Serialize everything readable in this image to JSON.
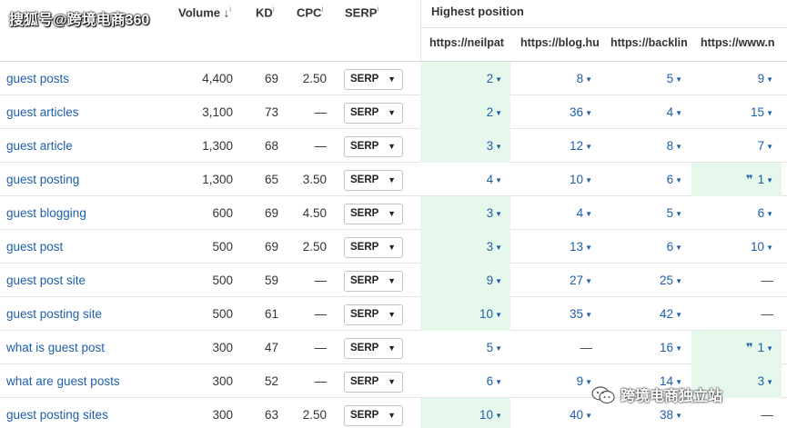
{
  "header": {
    "volume_label": "Volume",
    "volume_sort": "↓",
    "info_mark": "i",
    "kd_label": "KD",
    "cpc_label": "CPC",
    "serp_label": "SERP",
    "highest_position_label": "Highest position",
    "urls": [
      "https://neilpat",
      "https://blog.hu",
      "https://backlin",
      "https://www.n"
    ]
  },
  "serp_button_label": "SERP",
  "serp_caret": "▼",
  "position_caret": "▼",
  "featured_snippet_icon": "❞",
  "dash": "—",
  "highlight_color": "#e6f7ec",
  "link_color": "#1f5fa8",
  "rows": [
    {
      "keyword": "guest posts",
      "volume": "4,400",
      "kd": "69",
      "cpc": "2.50",
      "positions": [
        {
          "v": "2",
          "hl": true
        },
        {
          "v": "8"
        },
        {
          "v": "5"
        },
        {
          "v": "9"
        }
      ]
    },
    {
      "keyword": "guest articles",
      "volume": "3,100",
      "kd": "73",
      "cpc": "—",
      "positions": [
        {
          "v": "2",
          "hl": true
        },
        {
          "v": "36"
        },
        {
          "v": "4"
        },
        {
          "v": "15"
        }
      ]
    },
    {
      "keyword": "guest article",
      "volume": "1,300",
      "kd": "68",
      "cpc": "—",
      "positions": [
        {
          "v": "3",
          "hl": true
        },
        {
          "v": "12"
        },
        {
          "v": "8"
        },
        {
          "v": "7"
        }
      ]
    },
    {
      "keyword": "guest posting",
      "volume": "1,300",
      "kd": "65",
      "cpc": "3.50",
      "positions": [
        {
          "v": "4"
        },
        {
          "v": "10"
        },
        {
          "v": "6"
        },
        {
          "v": "1",
          "hl": true,
          "snippet": true
        }
      ]
    },
    {
      "keyword": "guest blogging",
      "volume": "600",
      "kd": "69",
      "cpc": "4.50",
      "positions": [
        {
          "v": "3",
          "hl": true
        },
        {
          "v": "4"
        },
        {
          "v": "5"
        },
        {
          "v": "6"
        }
      ]
    },
    {
      "keyword": "guest post",
      "volume": "500",
      "kd": "69",
      "cpc": "2.50",
      "positions": [
        {
          "v": "3",
          "hl": true
        },
        {
          "v": "13"
        },
        {
          "v": "6"
        },
        {
          "v": "10"
        }
      ]
    },
    {
      "keyword": "guest post site",
      "volume": "500",
      "kd": "59",
      "cpc": "—",
      "positions": [
        {
          "v": "9",
          "hl": true
        },
        {
          "v": "27"
        },
        {
          "v": "25"
        },
        {
          "v": "—",
          "dash": true
        }
      ]
    },
    {
      "keyword": "guest posting site",
      "volume": "500",
      "kd": "61",
      "cpc": "—",
      "positions": [
        {
          "v": "10",
          "hl": true
        },
        {
          "v": "35"
        },
        {
          "v": "42"
        },
        {
          "v": "—",
          "dash": true
        }
      ]
    },
    {
      "keyword": "what is guest post",
      "volume": "300",
      "kd": "47",
      "cpc": "—",
      "positions": [
        {
          "v": "5"
        },
        {
          "v": "—",
          "dash": true
        },
        {
          "v": "16"
        },
        {
          "v": "1",
          "hl": true,
          "snippet": true
        }
      ]
    },
    {
      "keyword": "what are guest posts",
      "volume": "300",
      "kd": "52",
      "cpc": "—",
      "positions": [
        {
          "v": "6"
        },
        {
          "v": "9"
        },
        {
          "v": "14"
        },
        {
          "v": "3",
          "hl": true
        }
      ]
    },
    {
      "keyword": "guest posting sites",
      "volume": "300",
      "kd": "63",
      "cpc": "2.50",
      "positions": [
        {
          "v": "10",
          "hl": true
        },
        {
          "v": "40"
        },
        {
          "v": "38"
        },
        {
          "v": "—",
          "dash": true
        }
      ]
    }
  ],
  "watermarks": {
    "top": "搜狐号@跨境电商360",
    "bottom": "跨境电商独立站"
  }
}
